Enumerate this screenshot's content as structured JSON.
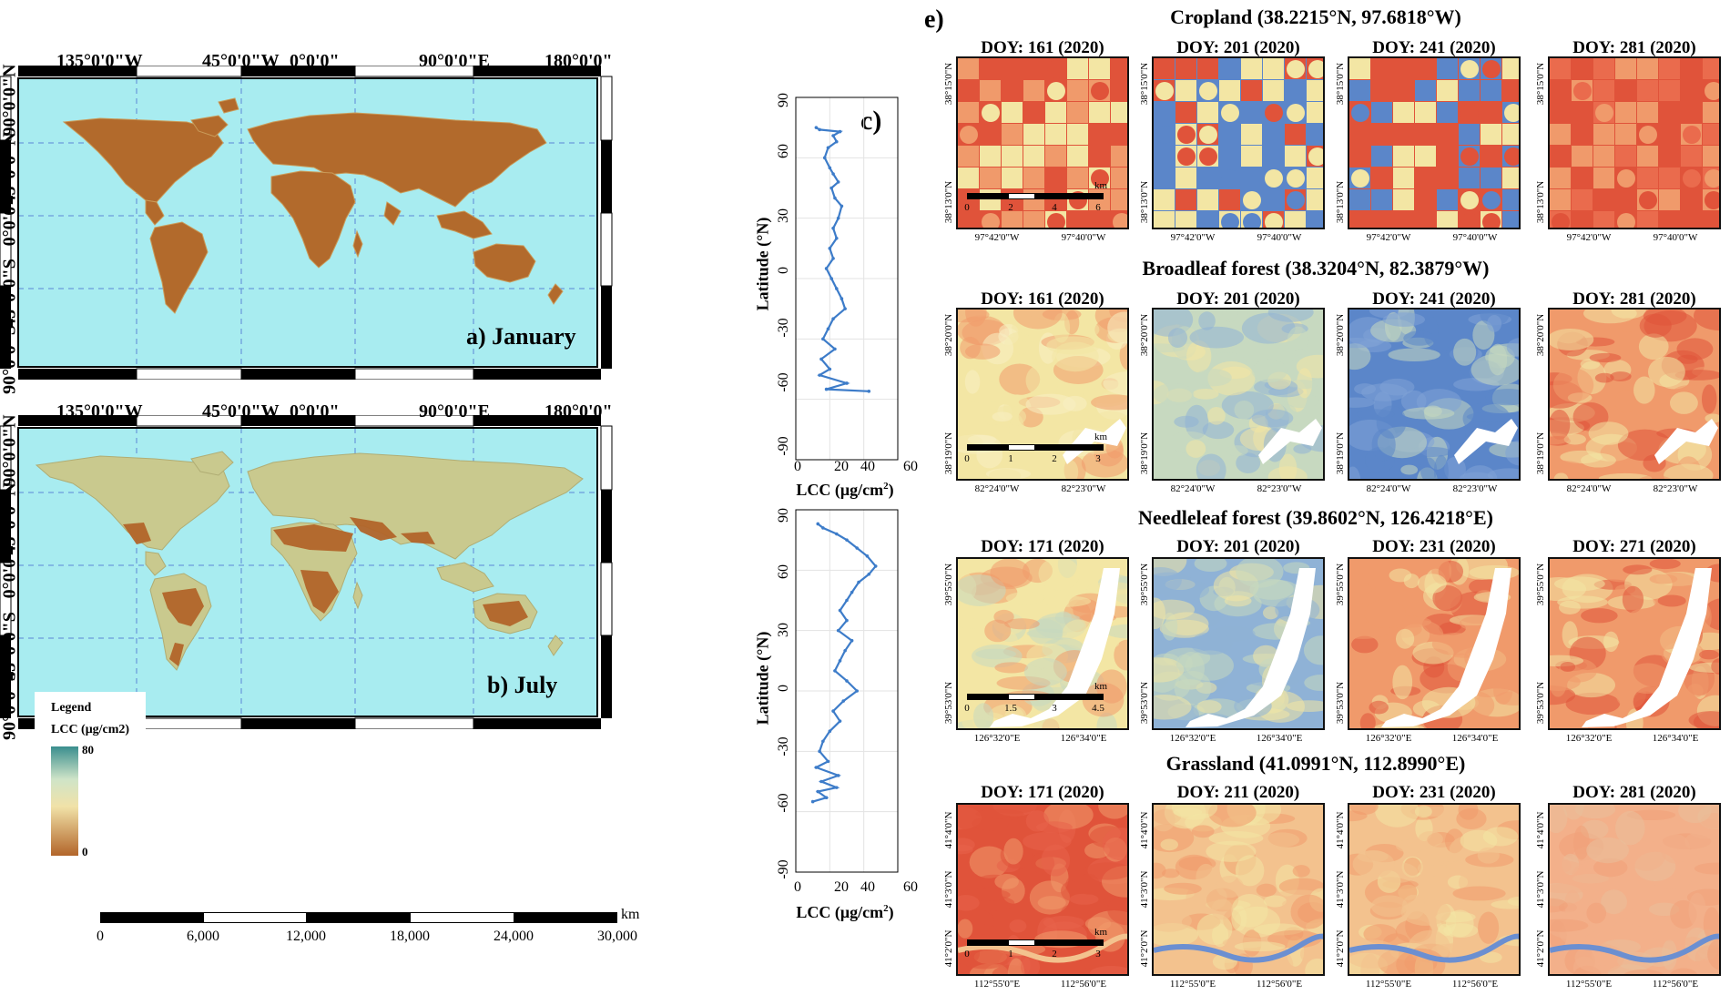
{
  "maps": {
    "january": {
      "label": "a) January",
      "lon_labels": [
        "135°0'0\"W",
        "45°0'0\"W",
        "0°0'0\"",
        "90°0'0\"E",
        "180°0'0\""
      ],
      "lat_labels": [
        "90°0'0\"N",
        "45°0'0\"N",
        "0°0'0\"",
        "45°0'0\"S",
        "90°0'0\"S"
      ]
    },
    "july": {
      "label": "b) July",
      "lon_labels": [
        "135°0'0\"W",
        "45°0'0\"W",
        "0°0'0\"",
        "90°0'0\"E",
        "180°0'0\""
      ],
      "lat_labels": [
        "90°0'0\"N",
        "45°0'0\"N",
        "0°0'0\"",
        "45°0'0\"S",
        "90°0'0\"S"
      ]
    },
    "legend": {
      "title": "Legend",
      "subtitle": "LCC (μg/cm2)",
      "max": "80",
      "min": "0"
    },
    "scalebar": {
      "unit": "km",
      "labels": [
        "0",
        "6,000",
        "12,000",
        "18,000",
        "24,000",
        "30,000"
      ]
    }
  },
  "panel_c_label": "c)",
  "panel_e_label": "e)",
  "chart_data": [
    {
      "type": "line",
      "title": "",
      "xlabel": "LCC (μg/cm2)",
      "ylabel": "Latitude (°N)",
      "xlim": [
        0,
        60
      ],
      "ylim": [
        -90,
        90
      ],
      "xticks": [
        "0",
        "20",
        "40",
        "60"
      ],
      "yticks": [
        "90",
        "60",
        "30",
        "0",
        "-30",
        "-60",
        "-90"
      ],
      "series": [
        {
          "name": "January",
          "points": [
            [
              12,
              75
            ],
            [
              14,
              74
            ],
            [
              26,
              73
            ],
            [
              22,
              71
            ],
            [
              24,
              68
            ],
            [
              19,
              65
            ],
            [
              17,
              60
            ],
            [
              20,
              55
            ],
            [
              22,
              52
            ],
            [
              25,
              48
            ],
            [
              21,
              45
            ],
            [
              23,
              40
            ],
            [
              27,
              36
            ],
            [
              25,
              30
            ],
            [
              22,
              25
            ],
            [
              24,
              20
            ],
            [
              20,
              15
            ],
            [
              22,
              10
            ],
            [
              18,
              5
            ],
            [
              21,
              0
            ],
            [
              24,
              -5
            ],
            [
              27,
              -10
            ],
            [
              29,
              -15
            ],
            [
              22,
              -20
            ],
            [
              19,
              -25
            ],
            [
              16,
              -30
            ],
            [
              23,
              -35
            ],
            [
              15,
              -40
            ],
            [
              20,
              -45
            ],
            [
              14,
              -48
            ],
            [
              30,
              -52
            ],
            [
              18,
              -55
            ],
            [
              43,
              -56
            ]
          ]
        }
      ]
    },
    {
      "type": "line",
      "title": "",
      "xlabel": "LCC (μg/cm2)",
      "ylabel": "Latitude (°N)",
      "xlim": [
        0,
        60
      ],
      "ylim": [
        -90,
        90
      ],
      "xticks": [
        "0",
        "20",
        "40",
        "60"
      ],
      "yticks": [
        "90",
        "60",
        "30",
        "0",
        "-30",
        "-60",
        "-90"
      ],
      "series": [
        {
          "name": "July",
          "points": [
            [
              13,
              83
            ],
            [
              16,
              81
            ],
            [
              24,
              78
            ],
            [
              30,
              75
            ],
            [
              36,
              71
            ],
            [
              42,
              67
            ],
            [
              47,
              62
            ],
            [
              43,
              58
            ],
            [
              37,
              54
            ],
            [
              33,
              49
            ],
            [
              30,
              45
            ],
            [
              26,
              40
            ],
            [
              30,
              35
            ],
            [
              25,
              30
            ],
            [
              33,
              25
            ],
            [
              29,
              20
            ],
            [
              26,
              15
            ],
            [
              23,
              10
            ],
            [
              30,
              5
            ],
            [
              36,
              0
            ],
            [
              28,
              -5
            ],
            [
              22,
              -10
            ],
            [
              26,
              -15
            ],
            [
              20,
              -20
            ],
            [
              16,
              -25
            ],
            [
              14,
              -30
            ],
            [
              19,
              -35
            ],
            [
              12,
              -38
            ],
            [
              25,
              -42
            ],
            [
              15,
              -45
            ],
            [
              24,
              -48
            ],
            [
              13,
              -50
            ],
            [
              18,
              -53
            ],
            [
              10,
              -55
            ]
          ]
        }
      ]
    }
  ],
  "sites": [
    {
      "title": "Cropland (38.2215°N, 97.6818°W)",
      "doys": [
        "DOY: 161 (2020)",
        "DOY: 201 (2020)",
        "DOY: 241 (2020)",
        "DOY: 281 (2020)"
      ],
      "lat_labels": [
        "38°15'0\"N",
        "38°13'0\"N"
      ],
      "lon_labels": [
        "97°42'0\"W",
        "97°40'0\"W"
      ],
      "scale_unit": "km",
      "scale_labels": [
        "0",
        "2",
        "4",
        "6"
      ]
    },
    {
      "title": "Broadleaf forest (38.3204°N, 82.3879°W)",
      "doys": [
        "DOY: 161 (2020)",
        "DOY: 201 (2020)",
        "DOY: 241 (2020)",
        "DOY: 281 (2020)"
      ],
      "lat_labels": [
        "38°20'0\"N",
        "38°19'0\"N"
      ],
      "lon_labels": [
        "82°24'0\"W",
        "82°23'0\"W"
      ],
      "scale_unit": "km",
      "scale_labels": [
        "0",
        "1",
        "2",
        "3"
      ]
    },
    {
      "title": "Needleleaf forest (39.8602°N, 126.4218°E)",
      "doys": [
        "DOY: 171 (2020)",
        "DOY: 201 (2020)",
        "DOY: 231 (2020)",
        "DOY: 271 (2020)"
      ],
      "lat_labels": [
        "39°55'0\"N",
        "39°53'0\"N"
      ],
      "lon_labels": [
        "126°32'0\"E",
        "126°34'0\"E"
      ],
      "scale_unit": "km",
      "scale_labels": [
        "0",
        "1.5",
        "3",
        "4.5"
      ]
    },
    {
      "title": "Grassland (41.0991°N, 112.8990°E)",
      "doys": [
        "DOY: 171 (2020)",
        "DOY: 211 (2020)",
        "DOY: 231 (2020)",
        "DOY: 281 (2020)"
      ],
      "lat_labels": [
        "41°4'0\"N",
        "41°3'0\"N",
        "41°2'0\"N"
      ],
      "lon_labels": [
        "112°55'0\"E",
        "112°56'0\"E"
      ],
      "scale_unit": "km",
      "scale_labels": [
        "0",
        "1",
        "2",
        "3"
      ]
    }
  ],
  "colors": {
    "ocean": "#a8ecf0",
    "land_jan": "#b26a2c",
    "land_jul": "#c9c98e",
    "series": "#3d7cc9",
    "high": "#e0533a",
    "mid": "#f3e6a4",
    "low": "#5b86c9"
  }
}
